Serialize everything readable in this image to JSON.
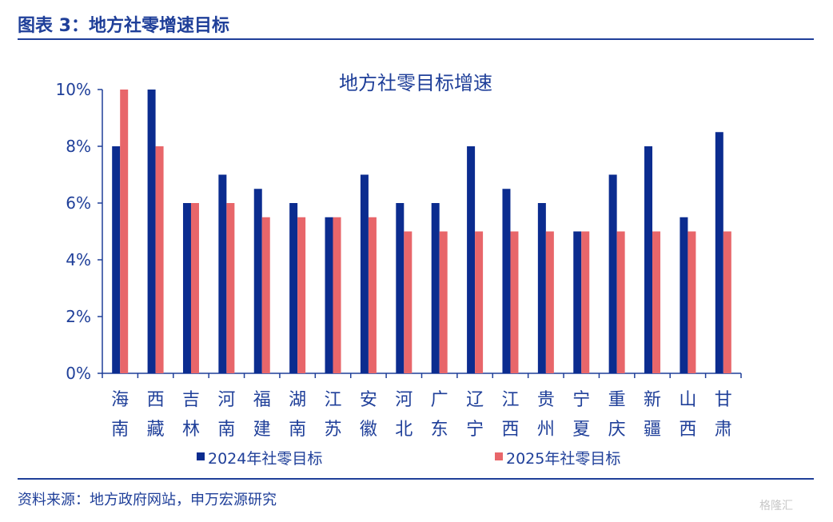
{
  "figure_title": "图表 3：地方社零增速目标",
  "source_note": "资料来源：地方政府网站，申万宏源研究",
  "watermark": "格隆汇",
  "chart_data": {
    "type": "bar",
    "title": "地方社零目标增速",
    "categories": [
      "海南",
      "西藏",
      "吉林",
      "河南",
      "福建",
      "湖南",
      "江苏",
      "安徽",
      "河北",
      "广东",
      "辽宁",
      "江西",
      "贵州",
      "宁夏",
      "重庆",
      "新疆",
      "山西",
      "甘肃"
    ],
    "category_lines": [
      [
        "海",
        "南"
      ],
      [
        "西",
        "藏"
      ],
      [
        "吉",
        "林"
      ],
      [
        "河",
        "南"
      ],
      [
        "福",
        "建"
      ],
      [
        "湖",
        "南"
      ],
      [
        "江",
        "苏"
      ],
      [
        "安",
        "徽"
      ],
      [
        "河",
        "北"
      ],
      [
        "广",
        "东"
      ],
      [
        "辽",
        "宁"
      ],
      [
        "江",
        "西"
      ],
      [
        "贵",
        "州"
      ],
      [
        "宁",
        "夏"
      ],
      [
        "重",
        "庆"
      ],
      [
        "新",
        "疆"
      ],
      [
        "山",
        "西"
      ],
      [
        "甘",
        "肃"
      ]
    ],
    "series": [
      {
        "name": "2024年社零目标",
        "color": "#0B2C8F",
        "values": [
          8,
          10,
          6,
          7,
          6.5,
          6,
          5.5,
          7,
          6,
          6,
          8,
          6.5,
          6,
          5,
          7,
          8,
          5.5,
          8.5
        ]
      },
      {
        "name": "2025年社零目标",
        "color": "#E8666A",
        "values": [
          10,
          8,
          6,
          6,
          5.5,
          5.5,
          5.5,
          5.5,
          5,
          5,
          5,
          5,
          5,
          5,
          5,
          5,
          5,
          5
        ]
      }
    ],
    "ylim": [
      0,
      10
    ],
    "yticks": [
      0,
      2,
      4,
      6,
      8,
      10
    ],
    "ytick_labels": [
      "0%",
      "2%",
      "4%",
      "6%",
      "8%",
      "10%"
    ],
    "xlabel": "",
    "ylabel": "",
    "legend": "bottom",
    "grid": false,
    "axis_color": "#1F3F99",
    "text_color": "#1F3F99"
  }
}
